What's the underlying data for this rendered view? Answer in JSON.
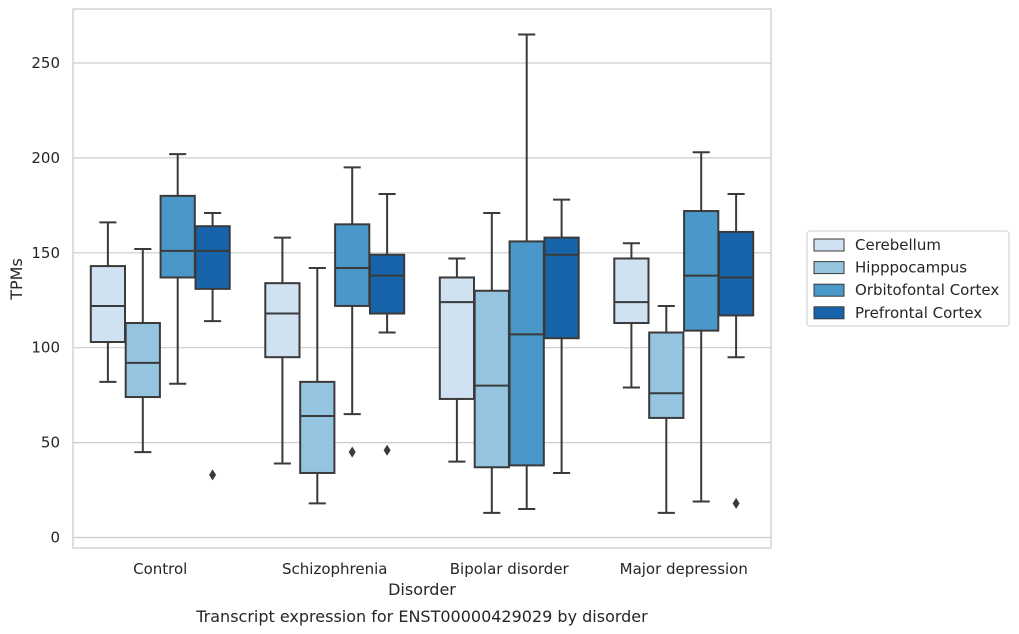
{
  "chart_data": {
    "type": "box",
    "categories": [
      "Control",
      "Schizophrenia",
      "Bipolar disorder",
      "Major depression"
    ],
    "xlabel": "Disorder",
    "ylabel": "TPMs",
    "caption": "Transcript expression for ENST00000429029 by disorder",
    "ylim": [
      -5,
      278
    ],
    "yticks": [
      0,
      50,
      100,
      150,
      200,
      250
    ],
    "grid": "horizontal",
    "legend_position": "right",
    "series": [
      {
        "name": "Cerebellum",
        "color": "#d0e1f2",
        "boxes": [
          {
            "whislo": 82,
            "q1": 103,
            "med": 122,
            "q3": 143,
            "whishi": 166,
            "fliers": []
          },
          {
            "whislo": 39,
            "q1": 95,
            "med": 118,
            "q3": 134,
            "whishi": 158,
            "fliers": []
          },
          {
            "whislo": 40,
            "q1": 73,
            "med": 124,
            "q3": 137,
            "whishi": 147,
            "fliers": []
          },
          {
            "whislo": 79,
            "q1": 113,
            "med": 124,
            "q3": 147,
            "whishi": 155,
            "fliers": []
          }
        ]
      },
      {
        "name": "Hipppocampus",
        "color": "#94c4df",
        "boxes": [
          {
            "whislo": 45,
            "q1": 74,
            "med": 92,
            "q3": 113,
            "whishi": 152,
            "fliers": []
          },
          {
            "whislo": 18,
            "q1": 34,
            "med": 64,
            "q3": 82,
            "whishi": 142,
            "fliers": []
          },
          {
            "whislo": 13,
            "q1": 37,
            "med": 80,
            "q3": 130,
            "whishi": 171,
            "fliers": []
          },
          {
            "whislo": 13,
            "q1": 63,
            "med": 76,
            "q3": 108,
            "whishi": 122,
            "fliers": []
          }
        ]
      },
      {
        "name": "Orbitofontal Cortex",
        "color": "#4a98c9",
        "boxes": [
          {
            "whislo": 81,
            "q1": 137,
            "med": 151,
            "q3": 180,
            "whishi": 202,
            "fliers": []
          },
          {
            "whislo": 65,
            "q1": 122,
            "med": 142,
            "q3": 165,
            "whishi": 195,
            "fliers": [
              45
            ]
          },
          {
            "whislo": 15,
            "q1": 38,
            "med": 107,
            "q3": 156,
            "whishi": 265,
            "fliers": []
          },
          {
            "whislo": 19,
            "q1": 109,
            "med": 138,
            "q3": 172,
            "whishi": 203,
            "fliers": []
          }
        ]
      },
      {
        "name": "Prefrontal Cortex",
        "color": "#1764ab",
        "boxes": [
          {
            "whislo": 114,
            "q1": 131,
            "med": 151,
            "q3": 164,
            "whishi": 171,
            "fliers": [
              33
            ]
          },
          {
            "whislo": 108,
            "q1": 118,
            "med": 138,
            "q3": 149,
            "whishi": 181,
            "fliers": [
              46
            ]
          },
          {
            "whislo": 34,
            "q1": 105,
            "med": 149,
            "q3": 158,
            "whishi": 178,
            "fliers": []
          },
          {
            "whislo": 95,
            "q1": 117,
            "med": 137,
            "q3": 161,
            "whishi": 181,
            "fliers": [
              18
            ]
          }
        ]
      }
    ]
  }
}
